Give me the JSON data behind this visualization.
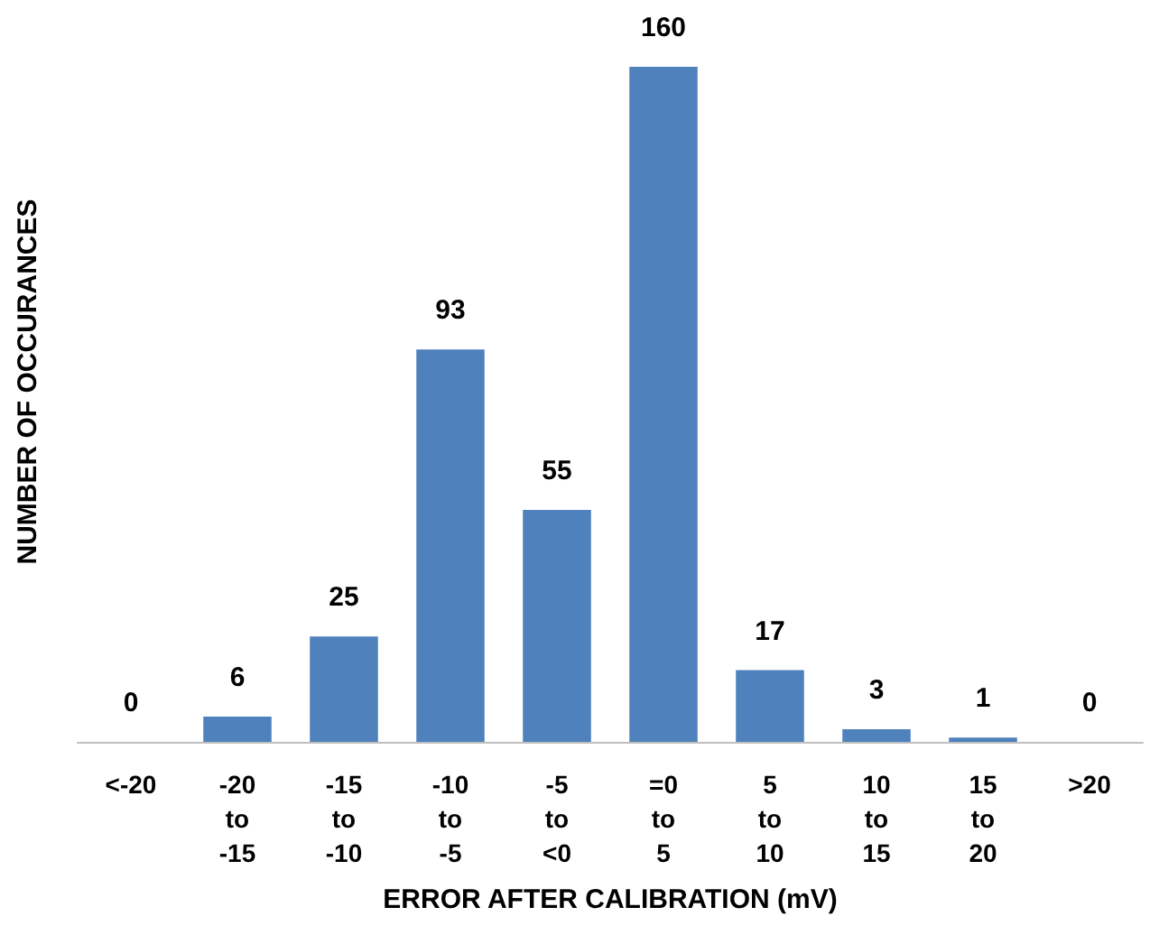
{
  "chart_data": {
    "type": "bar",
    "xlabel": "ERROR AFTER CALIBRATION (mV)",
    "ylabel": "NUMBER OF OCCURANCES",
    "categories": [
      "<-20",
      "-20 to -15",
      "-15 to -10",
      "-10 to -5",
      "-5 to <0",
      "=0 to 5",
      "5 to 10",
      "10 to 15",
      "15 to 20",
      ">20"
    ],
    "values": [
      0,
      6,
      25,
      93,
      55,
      160,
      17,
      3,
      1,
      0
    ],
    "color": "#4f81bd",
    "data_labels": true
  }
}
